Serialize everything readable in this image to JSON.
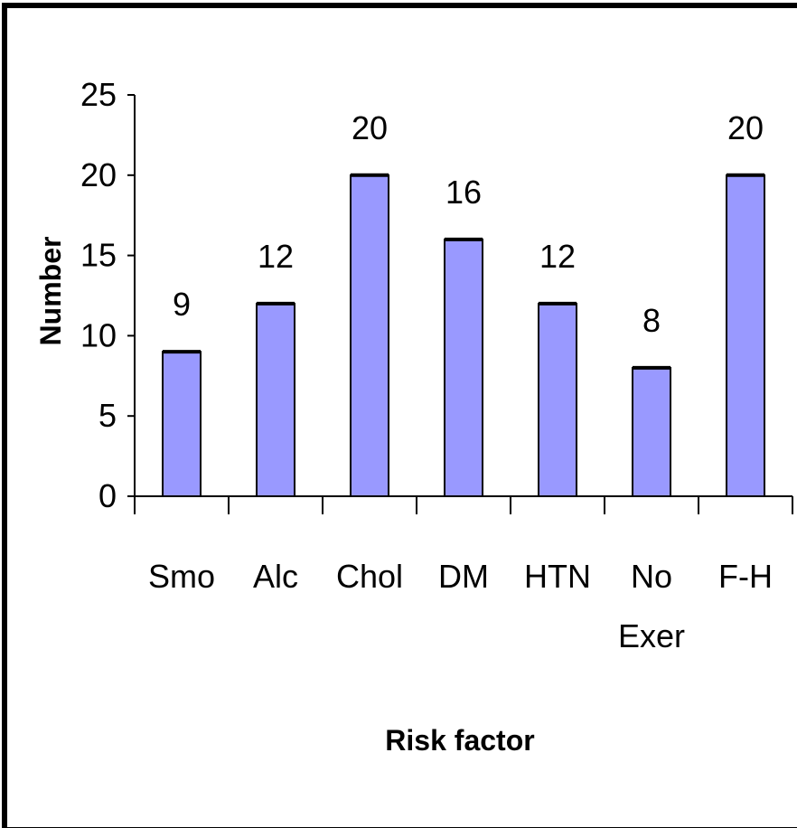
{
  "chart_data": {
    "type": "bar",
    "categories": [
      "Smo",
      "Alc",
      "Chol",
      "DM",
      "HTN",
      "No Exer",
      "F-H"
    ],
    "category_lines": [
      [
        "Smo"
      ],
      [
        "Alc"
      ],
      [
        "Chol"
      ],
      [
        "DM"
      ],
      [
        "HTN"
      ],
      [
        "No",
        "Exer"
      ],
      [
        "F-H"
      ]
    ],
    "values": [
      9,
      12,
      20,
      16,
      12,
      8,
      20
    ],
    "data_labels": [
      "9",
      "12",
      "20",
      "16",
      "12",
      "8",
      "20"
    ],
    "xlabel": "Risk factor",
    "ylabel": "Number",
    "ylim": [
      0,
      25
    ],
    "yticks": [
      "0",
      "5",
      "10",
      "15",
      "20",
      "25"
    ],
    "grid": false,
    "legend": "none",
    "bar_color": "#9999ff"
  }
}
